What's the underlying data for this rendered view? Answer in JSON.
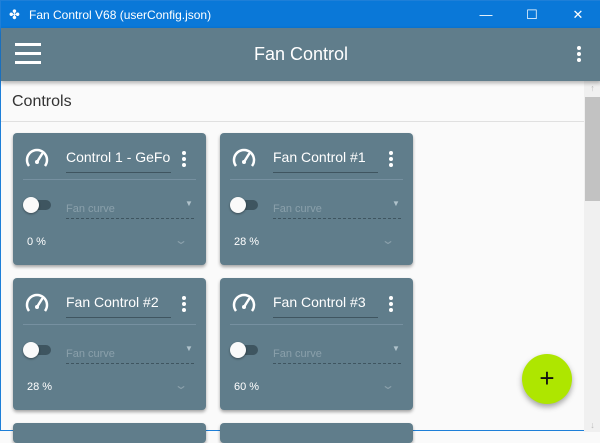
{
  "window": {
    "title": "Fan Control V68 (userConfig.json)",
    "minimize": "—",
    "maximize": "☐",
    "close": "✕"
  },
  "appbar": {
    "title": "Fan Control"
  },
  "section": {
    "title": "Controls"
  },
  "cards": [
    {
      "name": "Control 1 - GeFor",
      "mode_placeholder": "Fan curve",
      "value": "0 %",
      "enabled": false
    },
    {
      "name": "Fan Control #1",
      "mode_placeholder": "Fan curve",
      "value": "28 %",
      "enabled": false
    },
    {
      "name": "Fan Control #2",
      "mode_placeholder": "Fan curve",
      "value": "28 %",
      "enabled": false
    },
    {
      "name": "Fan Control #3",
      "mode_placeholder": "Fan curve",
      "value": "60 %",
      "enabled": false
    }
  ],
  "fab": {
    "label": "+"
  },
  "colors": {
    "titlebar": "#0a78d8",
    "appbar": "#607d8b",
    "card": "#607d8b",
    "fab": "#aee600"
  }
}
